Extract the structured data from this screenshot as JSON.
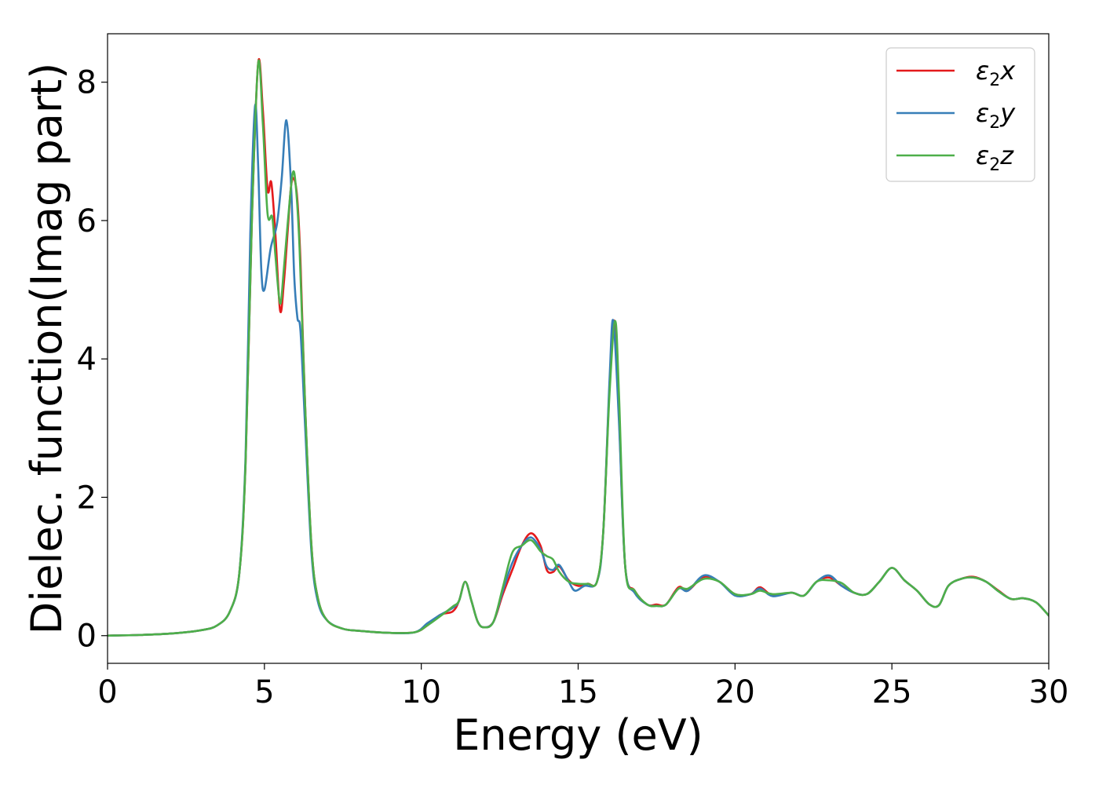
{
  "chart_data": {
    "type": "line",
    "xlabel": "Energy (eV)",
    "ylabel": "Dielec. function(Imag part)",
    "xlim": [
      0,
      30
    ],
    "ylim": [
      -0.4,
      8.7
    ],
    "xticks": [
      0,
      5,
      10,
      15,
      20,
      25,
      30
    ],
    "yticks": [
      0,
      2,
      4,
      6,
      8
    ],
    "grid": false,
    "legend_position": "top-right",
    "series": [
      {
        "name": "ε2x",
        "label_main": "ε",
        "label_sub": "2",
        "label_axis": "x",
        "color": "#e41a1c",
        "points": [
          [
            0,
            0
          ],
          [
            1,
            0.01
          ],
          [
            2,
            0.03
          ],
          [
            3,
            0.08
          ],
          [
            3.5,
            0.15
          ],
          [
            3.9,
            0.35
          ],
          [
            4.2,
            0.9
          ],
          [
            4.4,
            2.5
          ],
          [
            4.6,
            6.0
          ],
          [
            4.8,
            8.27
          ],
          [
            4.95,
            7.6
          ],
          [
            5.1,
            6.45
          ],
          [
            5.22,
            6.55
          ],
          [
            5.35,
            5.8
          ],
          [
            5.5,
            4.7
          ],
          [
            5.62,
            5.1
          ],
          [
            5.75,
            5.9
          ],
          [
            5.85,
            6.5
          ],
          [
            5.95,
            6.6
          ],
          [
            6.05,
            6.3
          ],
          [
            6.15,
            5.4
          ],
          [
            6.3,
            3.3
          ],
          [
            6.5,
            1.3
          ],
          [
            6.7,
            0.55
          ],
          [
            7,
            0.22
          ],
          [
            7.5,
            0.1
          ],
          [
            8,
            0.07
          ],
          [
            9,
            0.04
          ],
          [
            9.8,
            0.05
          ],
          [
            10.2,
            0.15
          ],
          [
            10.6,
            0.3
          ],
          [
            11,
            0.35
          ],
          [
            11.2,
            0.5
          ],
          [
            11.4,
            0.78
          ],
          [
            11.6,
            0.5
          ],
          [
            11.8,
            0.2
          ],
          [
            12,
            0.12
          ],
          [
            12.3,
            0.2
          ],
          [
            12.6,
            0.6
          ],
          [
            12.9,
            0.95
          ],
          [
            13.2,
            1.3
          ],
          [
            13.5,
            1.48
          ],
          [
            13.8,
            1.3
          ],
          [
            14,
            0.95
          ],
          [
            14.2,
            0.92
          ],
          [
            14.4,
            1.0
          ],
          [
            14.7,
            0.8
          ],
          [
            15,
            0.72
          ],
          [
            15.3,
            0.75
          ],
          [
            15.6,
            0.78
          ],
          [
            15.8,
            1.5
          ],
          [
            16,
            3.6
          ],
          [
            16.15,
            4.55
          ],
          [
            16.3,
            3.2
          ],
          [
            16.5,
            1.0
          ],
          [
            16.8,
            0.65
          ],
          [
            17.2,
            0.45
          ],
          [
            17.5,
            0.45
          ],
          [
            17.8,
            0.45
          ],
          [
            18.2,
            0.7
          ],
          [
            18.5,
            0.65
          ],
          [
            19,
            0.85
          ],
          [
            19.5,
            0.78
          ],
          [
            20,
            0.6
          ],
          [
            20.5,
            0.6
          ],
          [
            20.8,
            0.7
          ],
          [
            21.2,
            0.58
          ],
          [
            21.8,
            0.62
          ],
          [
            22.2,
            0.58
          ],
          [
            22.6,
            0.78
          ],
          [
            23,
            0.84
          ],
          [
            23.4,
            0.72
          ],
          [
            23.8,
            0.62
          ],
          [
            24.2,
            0.6
          ],
          [
            24.6,
            0.78
          ],
          [
            25,
            0.98
          ],
          [
            25.4,
            0.8
          ],
          [
            25.8,
            0.65
          ],
          [
            26.2,
            0.45
          ],
          [
            26.5,
            0.44
          ],
          [
            26.8,
            0.72
          ],
          [
            27.2,
            0.82
          ],
          [
            27.6,
            0.85
          ],
          [
            28,
            0.78
          ],
          [
            28.4,
            0.65
          ],
          [
            28.8,
            0.53
          ],
          [
            29.2,
            0.54
          ],
          [
            29.6,
            0.48
          ],
          [
            30,
            0.29
          ]
        ]
      },
      {
        "name": "ε2y",
        "label_main": "ε",
        "label_sub": "2",
        "label_axis": "y",
        "color": "#377eb8",
        "points": [
          [
            0,
            0
          ],
          [
            1,
            0.01
          ],
          [
            2,
            0.03
          ],
          [
            3,
            0.08
          ],
          [
            3.5,
            0.15
          ],
          [
            3.9,
            0.35
          ],
          [
            4.2,
            0.9
          ],
          [
            4.4,
            2.6
          ],
          [
            4.55,
            5.8
          ],
          [
            4.7,
            7.65
          ],
          [
            4.8,
            6.8
          ],
          [
            4.9,
            5.3
          ],
          [
            5.0,
            5.0
          ],
          [
            5.2,
            5.6
          ],
          [
            5.4,
            5.95
          ],
          [
            5.55,
            6.6
          ],
          [
            5.7,
            7.45
          ],
          [
            5.85,
            6.5
          ],
          [
            5.95,
            5.2
          ],
          [
            6.05,
            4.6
          ],
          [
            6.15,
            4.4
          ],
          [
            6.3,
            3.0
          ],
          [
            6.5,
            1.2
          ],
          [
            6.7,
            0.5
          ],
          [
            7,
            0.22
          ],
          [
            7.5,
            0.1
          ],
          [
            8,
            0.07
          ],
          [
            9,
            0.04
          ],
          [
            9.8,
            0.05
          ],
          [
            10.2,
            0.18
          ],
          [
            10.6,
            0.3
          ],
          [
            11,
            0.4
          ],
          [
            11.2,
            0.5
          ],
          [
            11.4,
            0.78
          ],
          [
            11.6,
            0.5
          ],
          [
            11.8,
            0.2
          ],
          [
            12,
            0.12
          ],
          [
            12.3,
            0.2
          ],
          [
            12.6,
            0.65
          ],
          [
            12.9,
            1.05
          ],
          [
            13.2,
            1.3
          ],
          [
            13.5,
            1.42
          ],
          [
            13.8,
            1.25
          ],
          [
            14,
            1.0
          ],
          [
            14.2,
            0.95
          ],
          [
            14.4,
            1.02
          ],
          [
            14.7,
            0.78
          ],
          [
            14.9,
            0.65
          ],
          [
            15.2,
            0.72
          ],
          [
            15.6,
            0.78
          ],
          [
            15.8,
            1.5
          ],
          [
            16,
            3.7
          ],
          [
            16.12,
            4.55
          ],
          [
            16.3,
            3.1
          ],
          [
            16.5,
            1.0
          ],
          [
            16.8,
            0.62
          ],
          [
            17.2,
            0.45
          ],
          [
            17.5,
            0.43
          ],
          [
            17.8,
            0.45
          ],
          [
            18.2,
            0.68
          ],
          [
            18.5,
            0.65
          ],
          [
            19,
            0.87
          ],
          [
            19.5,
            0.78
          ],
          [
            20,
            0.58
          ],
          [
            20.5,
            0.6
          ],
          [
            20.8,
            0.68
          ],
          [
            21.2,
            0.57
          ],
          [
            21.8,
            0.62
          ],
          [
            22.2,
            0.58
          ],
          [
            22.6,
            0.78
          ],
          [
            23,
            0.87
          ],
          [
            23.4,
            0.72
          ],
          [
            23.8,
            0.62
          ],
          [
            24.2,
            0.6
          ],
          [
            24.6,
            0.78
          ],
          [
            25,
            0.98
          ],
          [
            25.4,
            0.8
          ],
          [
            25.8,
            0.65
          ],
          [
            26.2,
            0.45
          ],
          [
            26.5,
            0.44
          ],
          [
            26.8,
            0.72
          ],
          [
            27.2,
            0.82
          ],
          [
            27.6,
            0.84
          ],
          [
            28,
            0.78
          ],
          [
            28.4,
            0.64
          ],
          [
            28.8,
            0.53
          ],
          [
            29.2,
            0.54
          ],
          [
            29.6,
            0.48
          ],
          [
            30,
            0.29
          ]
        ]
      },
      {
        "name": "ε2z",
        "label_main": "ε",
        "label_sub": "2",
        "label_axis": "z",
        "color": "#4daf4a",
        "points": [
          [
            0,
            0
          ],
          [
            1,
            0.01
          ],
          [
            2,
            0.03
          ],
          [
            3,
            0.08
          ],
          [
            3.5,
            0.15
          ],
          [
            3.9,
            0.35
          ],
          [
            4.2,
            0.9
          ],
          [
            4.4,
            2.5
          ],
          [
            4.6,
            6.0
          ],
          [
            4.8,
            8.27
          ],
          [
            4.95,
            7.4
          ],
          [
            5.1,
            6.1
          ],
          [
            5.25,
            6.05
          ],
          [
            5.35,
            5.5
          ],
          [
            5.5,
            4.8
          ],
          [
            5.62,
            5.3
          ],
          [
            5.75,
            6.0
          ],
          [
            5.9,
            6.68
          ],
          [
            6.0,
            6.5
          ],
          [
            6.12,
            5.6
          ],
          [
            6.3,
            3.3
          ],
          [
            6.5,
            1.3
          ],
          [
            6.7,
            0.55
          ],
          [
            7,
            0.22
          ],
          [
            7.5,
            0.1
          ],
          [
            8,
            0.07
          ],
          [
            9,
            0.04
          ],
          [
            9.8,
            0.05
          ],
          [
            10.2,
            0.15
          ],
          [
            10.6,
            0.28
          ],
          [
            11,
            0.42
          ],
          [
            11.2,
            0.5
          ],
          [
            11.4,
            0.78
          ],
          [
            11.6,
            0.5
          ],
          [
            11.8,
            0.2
          ],
          [
            12,
            0.12
          ],
          [
            12.3,
            0.2
          ],
          [
            12.6,
            0.7
          ],
          [
            12.9,
            1.2
          ],
          [
            13.2,
            1.3
          ],
          [
            13.5,
            1.38
          ],
          [
            13.8,
            1.22
          ],
          [
            14,
            1.15
          ],
          [
            14.2,
            1.1
          ],
          [
            14.4,
            0.92
          ],
          [
            14.7,
            0.78
          ],
          [
            15,
            0.75
          ],
          [
            15.3,
            0.75
          ],
          [
            15.6,
            0.78
          ],
          [
            15.8,
            1.5
          ],
          [
            16,
            3.5
          ],
          [
            16.18,
            4.55
          ],
          [
            16.3,
            3.5
          ],
          [
            16.5,
            1.0
          ],
          [
            16.8,
            0.65
          ],
          [
            17.2,
            0.45
          ],
          [
            17.5,
            0.43
          ],
          [
            17.8,
            0.45
          ],
          [
            18.2,
            0.68
          ],
          [
            18.5,
            0.68
          ],
          [
            19,
            0.82
          ],
          [
            19.5,
            0.78
          ],
          [
            20,
            0.6
          ],
          [
            20.5,
            0.6
          ],
          [
            20.8,
            0.65
          ],
          [
            21.2,
            0.6
          ],
          [
            21.8,
            0.62
          ],
          [
            22.2,
            0.58
          ],
          [
            22.6,
            0.78
          ],
          [
            23,
            0.8
          ],
          [
            23.4,
            0.76
          ],
          [
            23.8,
            0.62
          ],
          [
            24.2,
            0.6
          ],
          [
            24.6,
            0.78
          ],
          [
            25,
            0.98
          ],
          [
            25.4,
            0.8
          ],
          [
            25.8,
            0.65
          ],
          [
            26.2,
            0.45
          ],
          [
            26.5,
            0.44
          ],
          [
            26.8,
            0.72
          ],
          [
            27.2,
            0.82
          ],
          [
            27.6,
            0.84
          ],
          [
            28,
            0.78
          ],
          [
            28.4,
            0.64
          ],
          [
            28.8,
            0.53
          ],
          [
            29.2,
            0.54
          ],
          [
            29.6,
            0.48
          ],
          [
            30,
            0.29
          ]
        ]
      }
    ]
  }
}
